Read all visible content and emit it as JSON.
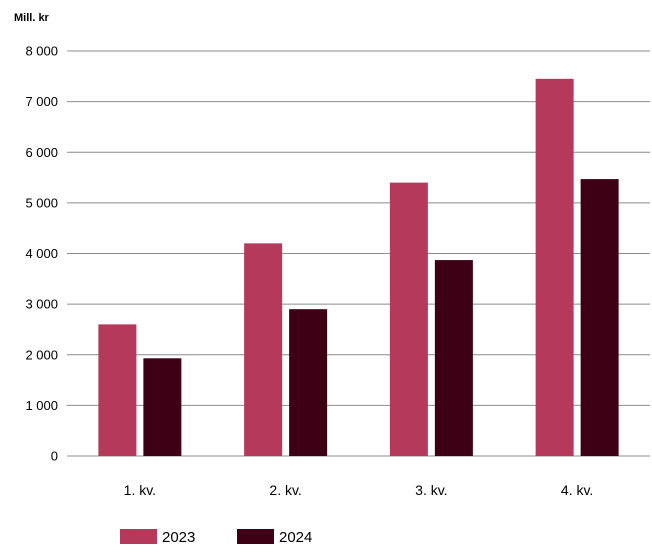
{
  "chart_data": {
    "type": "bar",
    "unit_label": "Mill. kr",
    "categories": [
      "1. kv.",
      "2. kv.",
      "3. kv.",
      "4. kv."
    ],
    "series": [
      {
        "name": "2023",
        "color": "#b5395a",
        "values": [
          2600,
          4200,
          5400,
          7450
        ]
      },
      {
        "name": "2024",
        "color": "#3d0014",
        "values": [
          1930,
          2900,
          3870,
          5470
        ]
      }
    ],
    "yticks": [
      "0",
      "1 000",
      "2 000",
      "3 000",
      "4 000",
      "5 000",
      "6 000",
      "7 000",
      "8 000"
    ],
    "ylim": [
      0,
      8000
    ],
    "grid": true,
    "legend_position": "bottom-left"
  }
}
